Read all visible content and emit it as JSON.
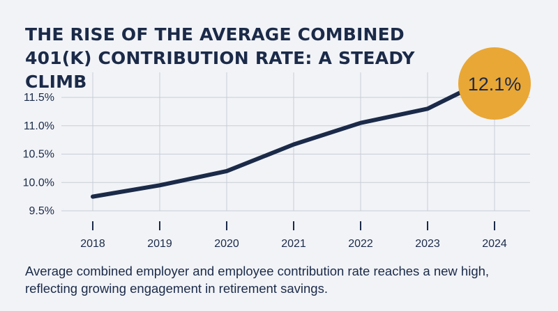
{
  "chart_data": {
    "type": "line",
    "title": "THE RISE OF THE AVERAGE COMBINED 401(K) CONTRIBUTION RATE: A STEADY CLIMB",
    "xlabel": "",
    "ylabel": "",
    "categories": [
      "2018",
      "2019",
      "2020",
      "2021",
      "2022",
      "2023",
      "2024"
    ],
    "series": [
      {
        "values": [
          9.75,
          9.95,
          10.2,
          10.67,
          11.05,
          11.3,
          12.1
        ]
      }
    ],
    "yticks": [
      9.5,
      10.0,
      10.5,
      11.0,
      11.5
    ],
    "ytick_labels": [
      "9.5%",
      "10.0%",
      "10.5%",
      "11.0%",
      "11.5%"
    ],
    "ylim": [
      9.5,
      11.5
    ],
    "grid": true,
    "annotation": {
      "label": "12.1%",
      "color": "#e9a735"
    },
    "line_color": "#1b2a48",
    "caption": "Average combined employer and employee contribution rate reaches a new high, reflecting growing engagement in retirement savings."
  }
}
